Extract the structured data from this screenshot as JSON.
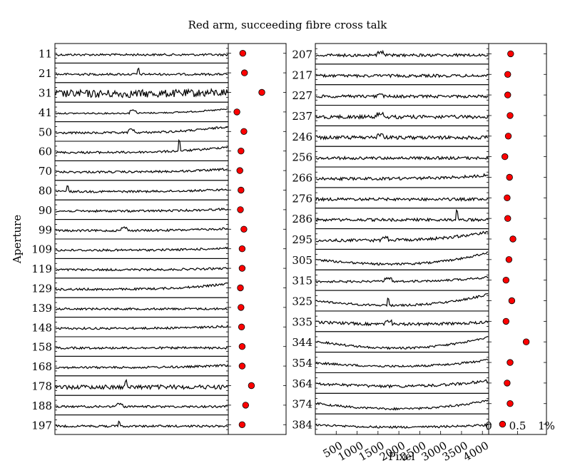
{
  "chart_data": {
    "type": "line",
    "title": "Red arm, succeeding fibre cross talk",
    "ylabel": "Aperture",
    "xlabel": "Pixel",
    "left_panel": {
      "apertures": [
        "11",
        "21",
        "31",
        "41",
        "50",
        "60",
        "70",
        "80",
        "90",
        "99",
        "109",
        "119",
        "129",
        "139",
        "148",
        "158",
        "168",
        "178",
        "188",
        "197"
      ],
      "crosstalk_percent": [
        0.25,
        0.28,
        0.58,
        0.15,
        0.27,
        0.22,
        0.2,
        0.22,
        0.21,
        0.27,
        0.24,
        0.24,
        0.21,
        0.22,
        0.23,
        0.24,
        0.24,
        0.4,
        0.3,
        0.24
      ]
    },
    "right_panel": {
      "apertures": [
        "207",
        "217",
        "227",
        "237",
        "246",
        "256",
        "266",
        "276",
        "286",
        "295",
        "305",
        "315",
        "325",
        "335",
        "344",
        "354",
        "364",
        "374",
        "384"
      ],
      "crosstalk_percent": [
        0.38,
        0.33,
        0.33,
        0.37,
        0.34,
        0.28,
        0.36,
        0.32,
        0.33,
        0.42,
        0.35,
        0.3,
        0.4,
        0.3,
        0.65,
        0.37,
        0.32,
        0.37,
        0.24
      ]
    },
    "pixel_axis": {
      "range": [
        0,
        4150
      ],
      "ticks": [
        "500",
        "1000",
        "1500",
        "2000",
        "2500",
        "3000",
        "3500",
        "4000"
      ]
    },
    "percent_axis": {
      "range": [
        0,
        1
      ],
      "ticks": [
        "0",
        "0.5",
        "1%"
      ]
    },
    "colors": {
      "marker": "#ff0000",
      "line": "#000000"
    }
  }
}
